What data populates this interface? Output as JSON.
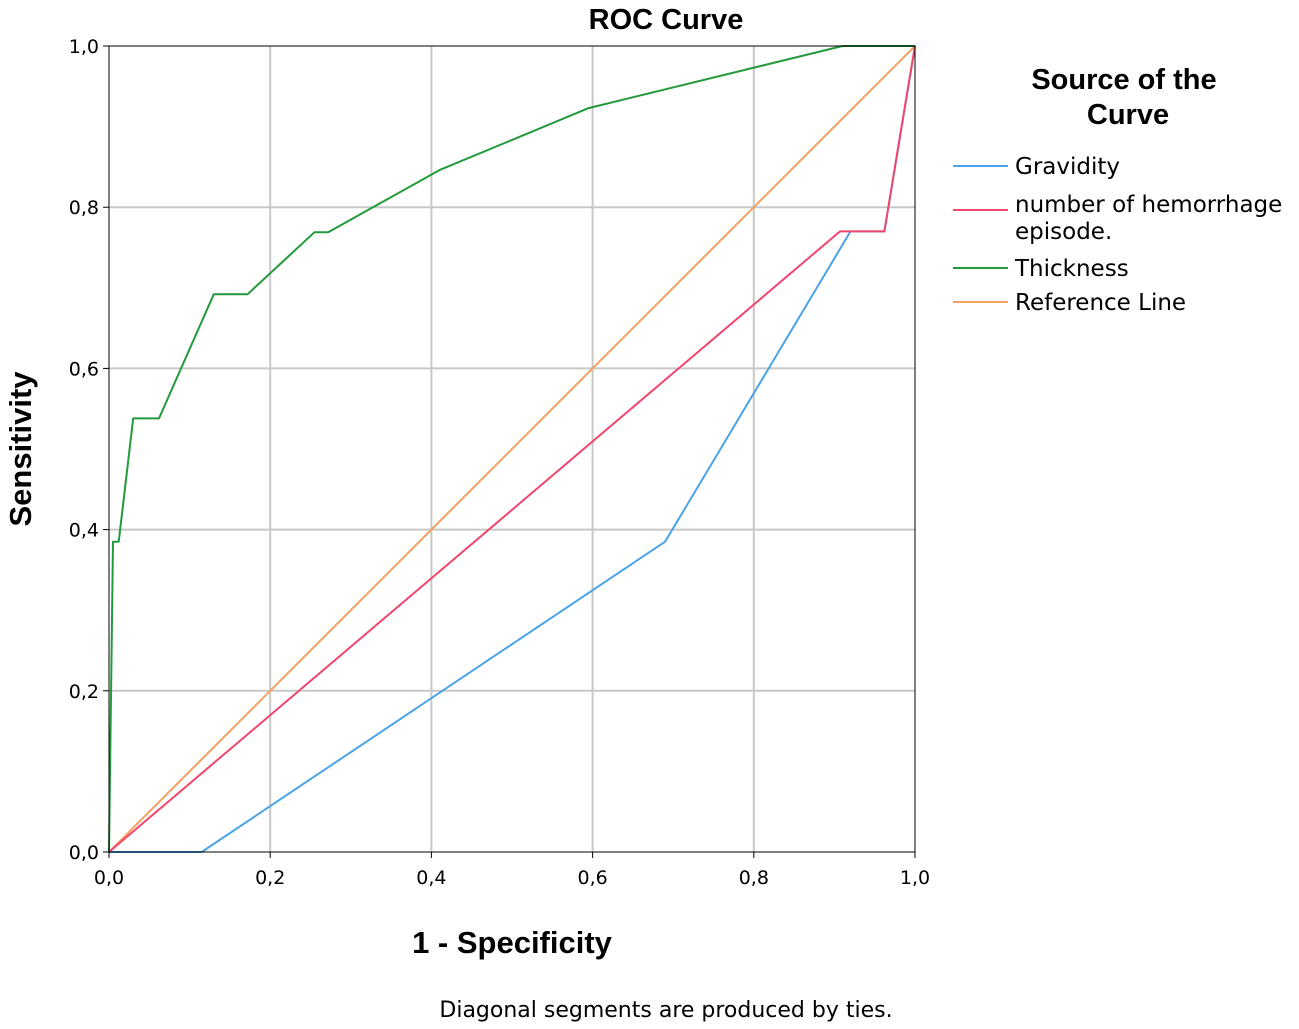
{
  "chart_data": {
    "type": "line",
    "title": "ROC Curve",
    "xlabel": "1 - Specificity",
    "ylabel": "Sensitivity",
    "xlim": [
      0,
      1
    ],
    "ylim": [
      0,
      1
    ],
    "xticks": [
      "0,0",
      "0,2",
      "0,4",
      "0,6",
      "0,8",
      "1,0"
    ],
    "yticks": [
      "0,0",
      "0,2",
      "0,4",
      "0,6",
      "0,8",
      "1,0"
    ],
    "grid": true,
    "legend": {
      "title": "Source of the Curve",
      "placement": "right"
    },
    "series": [
      {
        "name": "Gravidity",
        "color": "#4aa3e8",
        "points": [
          [
            0.0,
            0.0
          ],
          [
            0.115,
            0.0
          ],
          [
            0.69,
            0.385
          ],
          [
            0.92,
            0.77
          ],
          [
            0.962,
            0.77
          ],
          [
            1.0,
            1.0
          ]
        ]
      },
      {
        "name": "number of hemorrhage episode.",
        "color": "#f0466e",
        "points": [
          [
            0.0,
            0.0
          ],
          [
            0.907,
            0.77
          ],
          [
            0.962,
            0.77
          ],
          [
            0.98,
            0.88
          ],
          [
            1.0,
            1.0
          ]
        ]
      },
      {
        "name": "Thickness",
        "color": "#239a3b",
        "points": [
          [
            0.0,
            0.0
          ],
          [
            0.005,
            0.385
          ],
          [
            0.012,
            0.385
          ],
          [
            0.03,
            0.538
          ],
          [
            0.062,
            0.538
          ],
          [
            0.13,
            0.692
          ],
          [
            0.172,
            0.692
          ],
          [
            0.255,
            0.769
          ],
          [
            0.272,
            0.769
          ],
          [
            0.41,
            0.846
          ],
          [
            0.595,
            0.923
          ],
          [
            0.91,
            1.0
          ],
          [
            1.0,
            1.0
          ]
        ]
      },
      {
        "name": "Reference Line",
        "color": "#f5a060",
        "points": [
          [
            0.0,
            0.0
          ],
          [
            1.0,
            1.0
          ]
        ]
      }
    ],
    "footnote": "Diagonal segments are produced by ties."
  }
}
